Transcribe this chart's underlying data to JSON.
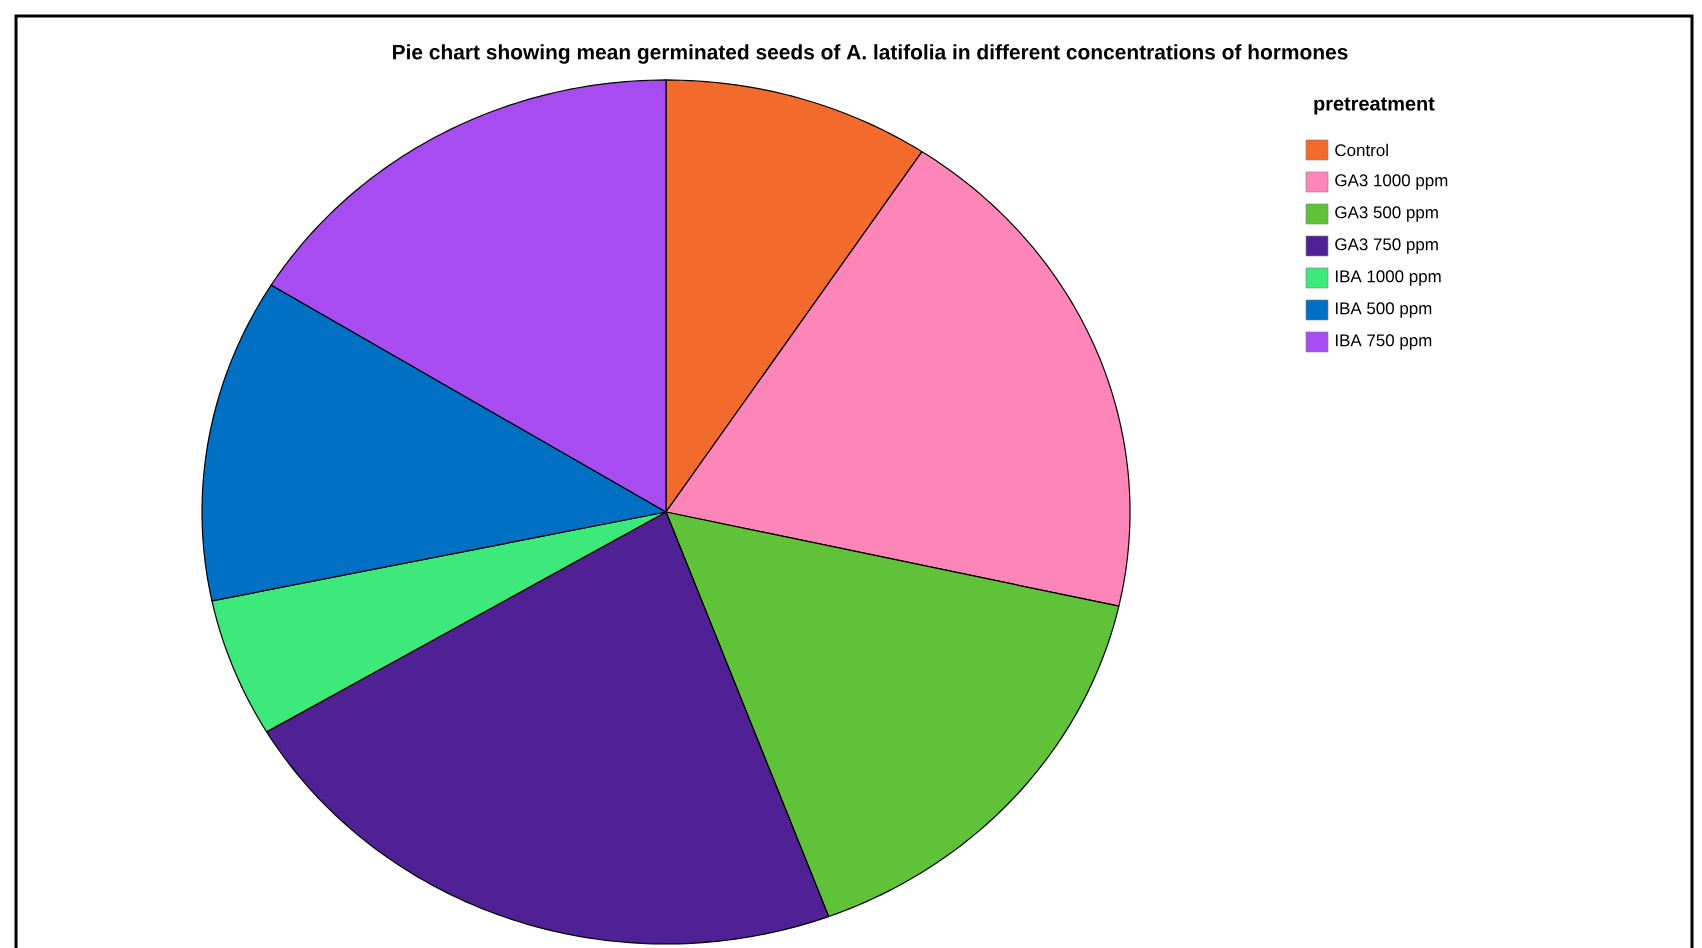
{
  "chart_data": {
    "type": "pie",
    "title": "Pie chart showing mean germinated seeds of A. latifolia in different concentrations of hormones",
    "legend_title": "pretreatment",
    "categories": [
      "Control",
      "GA3 1000 ppm",
      "GA3 500 ppm",
      "GA3 750 ppm",
      "IBA 1000 ppm",
      "IBA 500 ppm",
      "IBA 750 ppm"
    ],
    "values": [
      9.3,
      19.2,
      15.8,
      22.2,
      5.2,
      12.1,
      16.2
    ],
    "colors": [
      "#f26a2c",
      "#fd85b8",
      "#5fc238",
      "#4f2194",
      "#3ee97b",
      "#0070c4",
      "#a64cf0"
    ],
    "legend": "top right"
  }
}
